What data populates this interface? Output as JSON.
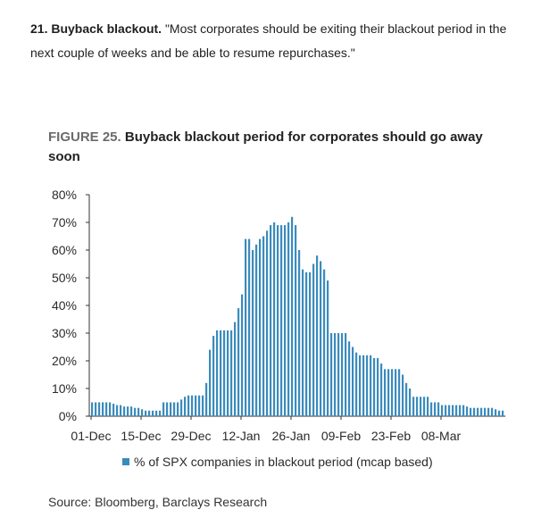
{
  "intro": {
    "heading": "21. Buyback blackout.",
    "body": " \"Most corporates should be exiting their blackout period in the next couple of weeks and be able to resume repurchases.\""
  },
  "figure": {
    "label": "FIGURE 25.",
    "title": "Buyback blackout period for corporates should go away soon",
    "source": "Source: Bloomberg, Barclays Research"
  },
  "colors": {
    "bar": "#3a8bbd",
    "axis": "#333333",
    "label_gray": "#6b6b6b"
  },
  "chart_data": {
    "type": "bar",
    "title": "Buyback blackout period for corporates should go away soon",
    "xlabel": "",
    "ylabel": "",
    "ylim": [
      0,
      0.8
    ],
    "yticks": [
      "0%",
      "10%",
      "20%",
      "30%",
      "40%",
      "50%",
      "60%",
      "70%",
      "80%"
    ],
    "xtick_labels": [
      "01-Dec",
      "15-Dec",
      "29-Dec",
      "12-Jan",
      "26-Jan",
      "09-Feb",
      "23-Feb",
      "08-Mar"
    ],
    "legend_position": "bottom",
    "grid": false,
    "series": [
      {
        "name": "% of SPX companies in blackout period (mcap based)",
        "values": [
          0.05,
          0.05,
          0.05,
          0.05,
          0.05,
          0.05,
          0.045,
          0.04,
          0.04,
          0.035,
          0.035,
          0.035,
          0.03,
          0.03,
          0.025,
          0.02,
          0.02,
          0.02,
          0.02,
          0.02,
          0.05,
          0.05,
          0.05,
          0.05,
          0.05,
          0.06,
          0.07,
          0.075,
          0.075,
          0.075,
          0.075,
          0.075,
          0.12,
          0.24,
          0.29,
          0.31,
          0.31,
          0.31,
          0.31,
          0.31,
          0.34,
          0.39,
          0.44,
          0.64,
          0.64,
          0.6,
          0.62,
          0.64,
          0.65,
          0.67,
          0.69,
          0.7,
          0.69,
          0.69,
          0.69,
          0.7,
          0.72,
          0.69,
          0.6,
          0.53,
          0.52,
          0.52,
          0.55,
          0.58,
          0.56,
          0.53,
          0.49,
          0.3,
          0.3,
          0.3,
          0.3,
          0.3,
          0.27,
          0.25,
          0.23,
          0.22,
          0.22,
          0.22,
          0.22,
          0.21,
          0.21,
          0.19,
          0.17,
          0.17,
          0.17,
          0.17,
          0.17,
          0.15,
          0.12,
          0.1,
          0.07,
          0.07,
          0.07,
          0.07,
          0.07,
          0.05,
          0.05,
          0.05,
          0.04,
          0.04,
          0.04,
          0.04,
          0.04,
          0.04,
          0.04,
          0.035,
          0.03,
          0.03,
          0.03,
          0.03,
          0.03,
          0.03,
          0.03,
          0.025,
          0.02,
          0.02
        ]
      }
    ]
  }
}
